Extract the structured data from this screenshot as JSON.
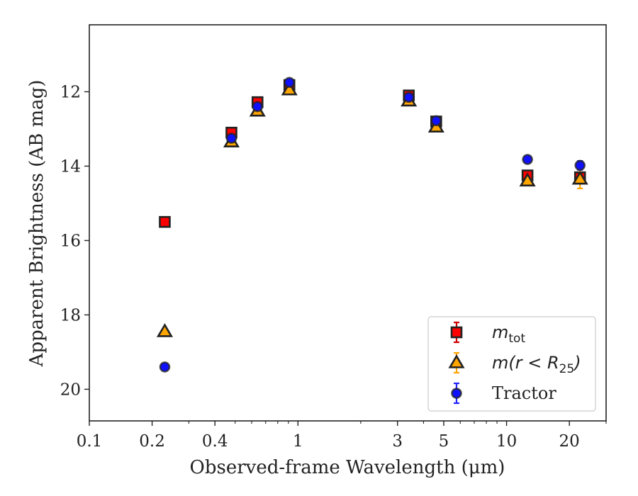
{
  "chart_data": {
    "type": "scatter",
    "title": "",
    "xlabel": "Observed-frame Wavelength (μm)",
    "ylabel": "Apparent Brightness (AB mag)",
    "xscale": "log",
    "xlim": [
      0.1,
      30
    ],
    "ylim": [
      20.85,
      10.2
    ],
    "y_inverted": true,
    "grid": false,
    "legend_position": "lower-right",
    "x_ticks": [
      {
        "value": 0.1,
        "label": "0.1"
      },
      {
        "value": 0.2,
        "label": "0.2"
      },
      {
        "value": 0.4,
        "label": "0.4"
      },
      {
        "value": 1,
        "label": "1"
      },
      {
        "value": 3,
        "label": "3"
      },
      {
        "value": 5,
        "label": "5"
      },
      {
        "value": 10,
        "label": "10"
      },
      {
        "value": 20,
        "label": "20"
      }
    ],
    "x_minor_ticks": [
      0.3,
      0.5,
      0.6,
      0.7,
      0.8,
      0.9,
      2,
      4,
      6,
      7,
      8,
      9,
      30
    ],
    "y_ticks": [
      {
        "value": 12,
        "label": "12"
      },
      {
        "value": 14,
        "label": "14"
      },
      {
        "value": 16,
        "label": "16"
      },
      {
        "value": 18,
        "label": "18"
      },
      {
        "value": 20,
        "label": "20"
      }
    ],
    "series": [
      {
        "name": "m_tot",
        "marker": "square",
        "color": "#ff0000",
        "error_color": "#cc0000",
        "points": [
          {
            "x": 0.23,
            "y": 15.5,
            "err": 0.05
          },
          {
            "x": 0.48,
            "y": 13.1,
            "err": 0.08
          },
          {
            "x": 0.64,
            "y": 12.28,
            "err": 0.08
          },
          {
            "x": 0.91,
            "y": 11.82,
            "err": 0.08
          },
          {
            "x": 3.4,
            "y": 12.1,
            "err": 0.05
          },
          {
            "x": 4.6,
            "y": 12.8,
            "err": 0.05
          },
          {
            "x": 12.6,
            "y": 14.25,
            "err": 0.08
          },
          {
            "x": 22.5,
            "y": 14.3,
            "err": 0.12
          }
        ]
      },
      {
        "name": "m(r < R25)",
        "marker": "triangle",
        "color": "#ffa500",
        "error_color": "#ffa500",
        "points": [
          {
            "x": 0.23,
            "y": 18.45,
            "err": 0.05
          },
          {
            "x": 0.48,
            "y": 13.35,
            "err": 0.05
          },
          {
            "x": 0.64,
            "y": 12.52,
            "err": 0.05
          },
          {
            "x": 0.91,
            "y": 11.95,
            "err": 0.05
          },
          {
            "x": 3.4,
            "y": 12.25,
            "err": 0.05
          },
          {
            "x": 4.6,
            "y": 12.95,
            "err": 0.05
          },
          {
            "x": 12.6,
            "y": 14.4,
            "err": 0.08
          },
          {
            "x": 22.5,
            "y": 14.35,
            "err": 0.25
          }
        ]
      },
      {
        "name": "Tractor",
        "marker": "circle",
        "color": "#1010ff",
        "error_color": "#2222ff",
        "points": [
          {
            "x": 0.23,
            "y": 19.4,
            "err": 0.05
          },
          {
            "x": 0.48,
            "y": 13.25,
            "err": 0.05
          },
          {
            "x": 0.64,
            "y": 12.4,
            "err": 0.05
          },
          {
            "x": 0.91,
            "y": 11.75,
            "err": 0.05
          },
          {
            "x": 3.4,
            "y": 12.15,
            "err": 0.05
          },
          {
            "x": 4.6,
            "y": 12.78,
            "err": 0.05
          },
          {
            "x": 12.6,
            "y": 13.82,
            "err": 0.08
          },
          {
            "x": 22.5,
            "y": 13.98,
            "err": 0.12
          }
        ]
      }
    ],
    "legend": [
      {
        "series": 0,
        "math": "m",
        "sub": "tot",
        "tail": ""
      },
      {
        "series": 1,
        "math": "m(r < R",
        "sub": "25",
        "tail": ")"
      },
      {
        "series": 2,
        "text": "Tractor"
      }
    ]
  }
}
